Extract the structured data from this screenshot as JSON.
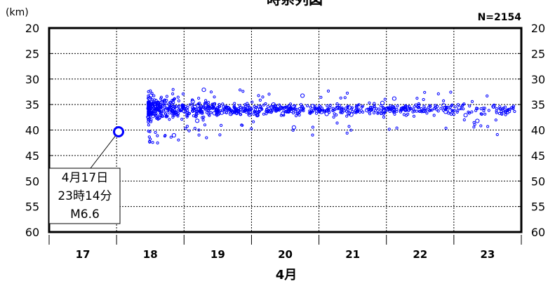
{
  "chart_data": {
    "type": "scatter",
    "title": "時系列図",
    "unit_label": "(km)",
    "count_label": "N=2154",
    "xlabel": "4月",
    "x_ticks": [
      "17",
      "18",
      "19",
      "20",
      "21",
      "22",
      "23"
    ],
    "y_ticks": [
      20,
      25,
      30,
      35,
      40,
      45,
      50,
      55,
      60
    ],
    "ylim": [
      20,
      60
    ],
    "y_inverted": true,
    "xlim_days": [
      16.5,
      23.5
    ],
    "grid": true,
    "marker_color": "#0000ff",
    "mainshock": {
      "day": 17,
      "time": "23:14",
      "depth_km": 40.3,
      "magnitude": 6.6,
      "label_lines": [
        "4月17日",
        "23時14分",
        "M6.6"
      ]
    },
    "aftershock_depth_band_km": [
      33,
      41
    ],
    "aftershock_central_depth_km": 36,
    "x_axis_is_date": true
  }
}
